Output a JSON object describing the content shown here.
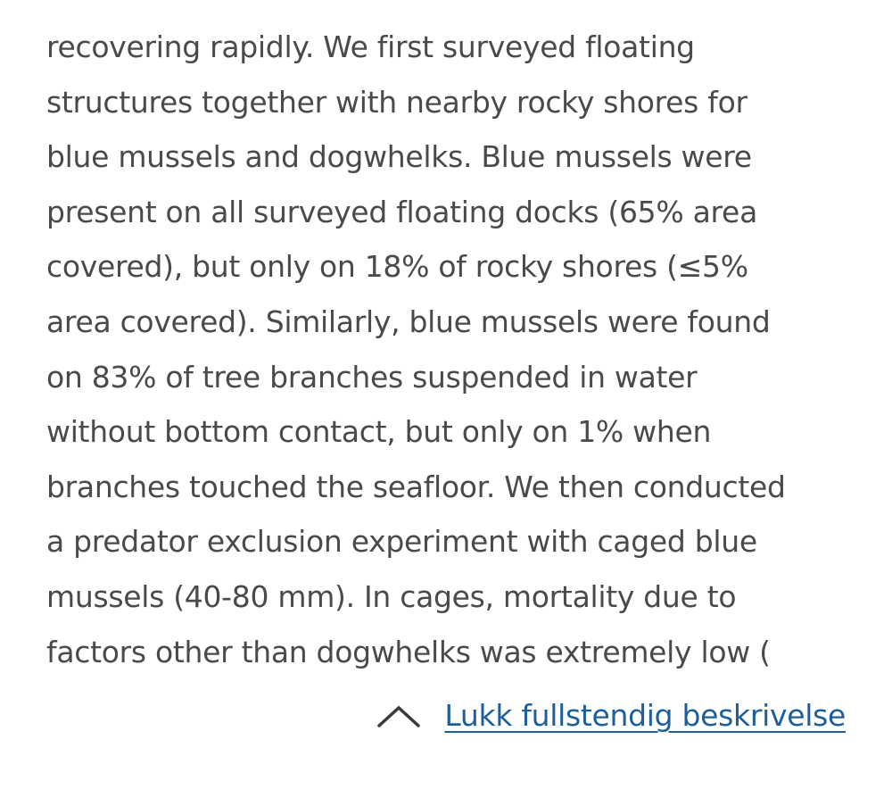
{
  "description": {
    "lines": [
      "recovering rapidly. We first surveyed floating",
      "structures together with nearby rocky shores for",
      "blue mussels and dogwhelks. Blue mussels were",
      "present on all surveyed floating docks (65% area",
      "covered), but only on 18% of rocky shores (≤5%",
      "area covered). Similarly, blue mussels were found",
      "on 83% of tree branches suspended in water",
      "without bottom contact, but only on 1% when",
      "branches touched the seafloor. We then conducted",
      "a predator exclusion experiment with caged blue",
      "mussels (40-80 mm). In cages, mortality due to",
      "factors other than dogwhelks was extremely low ("
    ]
  },
  "toggle": {
    "label": "Lukk fullstendig beskrivelse",
    "icon": "chevron-up-icon"
  },
  "colors": {
    "text": "#4a4a4a",
    "link": "#1e5f99"
  }
}
